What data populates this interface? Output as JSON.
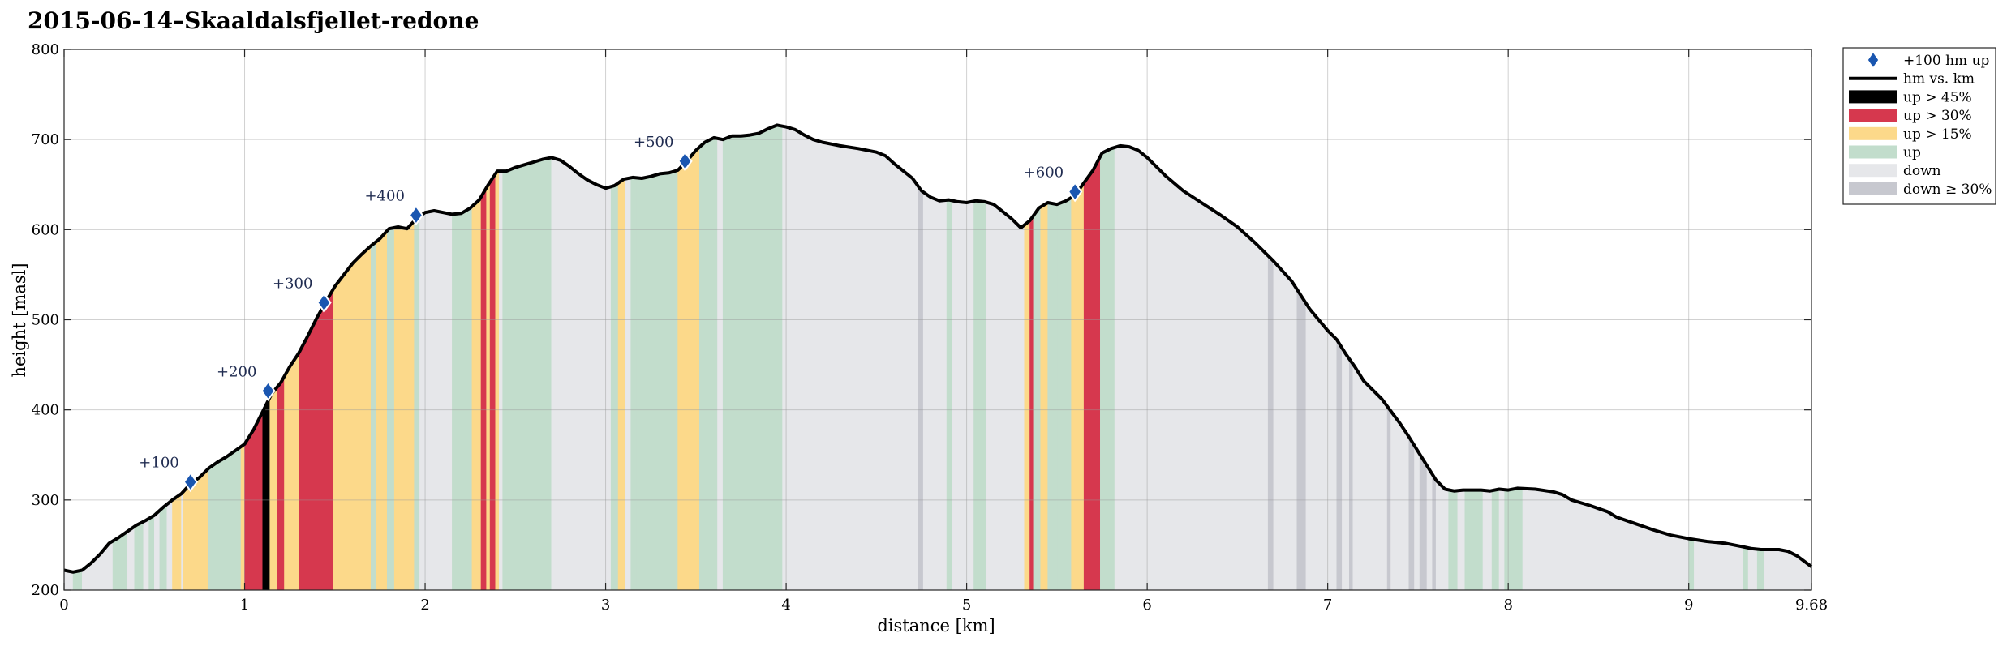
{
  "chart_data": {
    "type": "area",
    "title": "2015-06-14–Skaaldalsfjellet-redone",
    "xlabel": "distance [km]",
    "ylabel": "height [masl]",
    "xlim": [
      0,
      9.68
    ],
    "ylim": [
      200,
      800
    ],
    "xticks": [
      "0",
      "1",
      "2",
      "3",
      "4",
      "5",
      "6",
      "7",
      "8",
      "9",
      "9.68"
    ],
    "yticks": [
      "200",
      "300",
      "400",
      "500",
      "600",
      "700",
      "800"
    ],
    "grid": true,
    "legend_position": "outside-right",
    "legend": [
      {
        "key": "marker",
        "label": "+100 hm up",
        "color": "#1a56b0"
      },
      {
        "key": "line",
        "label": "hm vs. km",
        "color": "#000000"
      },
      {
        "key": "up45",
        "label": "up > 45%",
        "color": "#000000"
      },
      {
        "key": "up30",
        "label": "up > 30%",
        "color": "#d6384e"
      },
      {
        "key": "up15",
        "label": "up > 15%",
        "color": "#fcd98a"
      },
      {
        "key": "up",
        "label": "up",
        "color": "#c2ddcc"
      },
      {
        "key": "down",
        "label": "down",
        "color": "#e6e7ea"
      },
      {
        "key": "down30",
        "label": "down ≥ 30%",
        "color": "#c7c8cf"
      }
    ],
    "profile": [
      [
        0,
        222
      ],
      [
        0.05,
        220
      ],
      [
        0.1,
        222
      ],
      [
        0.15,
        230
      ],
      [
        0.2,
        240
      ],
      [
        0.25,
        252
      ],
      [
        0.3,
        258
      ],
      [
        0.35,
        265
      ],
      [
        0.4,
        272
      ],
      [
        0.45,
        277
      ],
      [
        0.5,
        283
      ],
      [
        0.55,
        292
      ],
      [
        0.6,
        300
      ],
      [
        0.65,
        307
      ],
      [
        0.7,
        318
      ],
      [
        0.75,
        325
      ],
      [
        0.8,
        335
      ],
      [
        0.85,
        342
      ],
      [
        0.9,
        348
      ],
      [
        0.95,
        355
      ],
      [
        1.0,
        362
      ],
      [
        1.05,
        378
      ],
      [
        1.1,
        398
      ],
      [
        1.15,
        418
      ],
      [
        1.2,
        430
      ],
      [
        1.25,
        448
      ],
      [
        1.3,
        463
      ],
      [
        1.35,
        482
      ],
      [
        1.4,
        502
      ],
      [
        1.45,
        520
      ],
      [
        1.5,
        537
      ],
      [
        1.55,
        550
      ],
      [
        1.6,
        563
      ],
      [
        1.65,
        573
      ],
      [
        1.7,
        582
      ],
      [
        1.75,
        590
      ],
      [
        1.8,
        601
      ],
      [
        1.85,
        603
      ],
      [
        1.9,
        601
      ],
      [
        1.95,
        612
      ],
      [
        2.0,
        619
      ],
      [
        2.05,
        621
      ],
      [
        2.1,
        619
      ],
      [
        2.15,
        617
      ],
      [
        2.2,
        618
      ],
      [
        2.25,
        624
      ],
      [
        2.3,
        633
      ],
      [
        2.35,
        650
      ],
      [
        2.4,
        665
      ],
      [
        2.45,
        665
      ],
      [
        2.5,
        669
      ],
      [
        2.55,
        672
      ],
      [
        2.6,
        675
      ],
      [
        2.65,
        678
      ],
      [
        2.7,
        680
      ],
      [
        2.75,
        677
      ],
      [
        2.8,
        670
      ],
      [
        2.85,
        662
      ],
      [
        2.9,
        655
      ],
      [
        2.95,
        650
      ],
      [
        3.0,
        646
      ],
      [
        3.05,
        649
      ],
      [
        3.1,
        656
      ],
      [
        3.15,
        658
      ],
      [
        3.2,
        657
      ],
      [
        3.25,
        659
      ],
      [
        3.3,
        662
      ],
      [
        3.35,
        663
      ],
      [
        3.4,
        666
      ],
      [
        3.45,
        676
      ],
      [
        3.5,
        688
      ],
      [
        3.55,
        697
      ],
      [
        3.6,
        702
      ],
      [
        3.65,
        700
      ],
      [
        3.7,
        704
      ],
      [
        3.75,
        704
      ],
      [
        3.8,
        705
      ],
      [
        3.85,
        707
      ],
      [
        3.9,
        712
      ],
      [
        3.95,
        716
      ],
      [
        4.0,
        714
      ],
      [
        4.05,
        711
      ],
      [
        4.1,
        705
      ],
      [
        4.15,
        700
      ],
      [
        4.2,
        697
      ],
      [
        4.3,
        693
      ],
      [
        4.4,
        690
      ],
      [
        4.5,
        686
      ],
      [
        4.55,
        682
      ],
      [
        4.6,
        673
      ],
      [
        4.65,
        665
      ],
      [
        4.7,
        657
      ],
      [
        4.75,
        643
      ],
      [
        4.8,
        636
      ],
      [
        4.85,
        632
      ],
      [
        4.9,
        633
      ],
      [
        4.95,
        631
      ],
      [
        5.0,
        630
      ],
      [
        5.05,
        632
      ],
      [
        5.1,
        631
      ],
      [
        5.15,
        628
      ],
      [
        5.2,
        620
      ],
      [
        5.25,
        612
      ],
      [
        5.3,
        602
      ],
      [
        5.35,
        610
      ],
      [
        5.4,
        624
      ],
      [
        5.45,
        630
      ],
      [
        5.5,
        628
      ],
      [
        5.55,
        632
      ],
      [
        5.6,
        638
      ],
      [
        5.65,
        652
      ],
      [
        5.7,
        666
      ],
      [
        5.75,
        685
      ],
      [
        5.8,
        690
      ],
      [
        5.85,
        693
      ],
      [
        5.9,
        692
      ],
      [
        5.95,
        688
      ],
      [
        6.0,
        680
      ],
      [
        6.05,
        670
      ],
      [
        6.1,
        660
      ],
      [
        6.2,
        643
      ],
      [
        6.3,
        630
      ],
      [
        6.4,
        617
      ],
      [
        6.5,
        603
      ],
      [
        6.6,
        585
      ],
      [
        6.7,
        565
      ],
      [
        6.8,
        543
      ],
      [
        6.9,
        512
      ],
      [
        7.0,
        488
      ],
      [
        7.05,
        478
      ],
      [
        7.1,
        462
      ],
      [
        7.15,
        448
      ],
      [
        7.2,
        432
      ],
      [
        7.3,
        412
      ],
      [
        7.4,
        385
      ],
      [
        7.45,
        370
      ],
      [
        7.5,
        354
      ],
      [
        7.55,
        338
      ],
      [
        7.6,
        322
      ],
      [
        7.65,
        312
      ],
      [
        7.7,
        310
      ],
      [
        7.75,
        311
      ],
      [
        7.8,
        311
      ],
      [
        7.85,
        311
      ],
      [
        7.9,
        310
      ],
      [
        7.95,
        312
      ],
      [
        8.0,
        311
      ],
      [
        8.05,
        313
      ],
      [
        8.15,
        312
      ],
      [
        8.25,
        309
      ],
      [
        8.3,
        306
      ],
      [
        8.35,
        300
      ],
      [
        8.45,
        294
      ],
      [
        8.55,
        287
      ],
      [
        8.6,
        281
      ],
      [
        8.7,
        274
      ],
      [
        8.8,
        267
      ],
      [
        8.9,
        261
      ],
      [
        9.0,
        257
      ],
      [
        9.1,
        254
      ],
      [
        9.2,
        252
      ],
      [
        9.3,
        248
      ],
      [
        9.35,
        246
      ],
      [
        9.4,
        245
      ],
      [
        9.5,
        245
      ],
      [
        9.55,
        243
      ],
      [
        9.6,
        238
      ],
      [
        9.68,
        226
      ]
    ],
    "band_categories": [
      "up45",
      "up30",
      "up15",
      "up",
      "down",
      "down30"
    ],
    "bands": [
      [
        0,
        0.05,
        "down"
      ],
      [
        0.05,
        0.1,
        "up"
      ],
      [
        0.1,
        0.27,
        "down"
      ],
      [
        0.27,
        0.35,
        "up"
      ],
      [
        0.35,
        0.39,
        "down"
      ],
      [
        0.39,
        0.44,
        "up"
      ],
      [
        0.44,
        0.47,
        "down"
      ],
      [
        0.47,
        0.5,
        "up"
      ],
      [
        0.5,
        0.53,
        "down"
      ],
      [
        0.53,
        0.57,
        "up"
      ],
      [
        0.57,
        0.6,
        "down"
      ],
      [
        0.6,
        0.65,
        "up15"
      ],
      [
        0.65,
        0.66,
        "down"
      ],
      [
        0.66,
        0.8,
        "up15"
      ],
      [
        0.8,
        0.98,
        "up"
      ],
      [
        0.98,
        1.0,
        "up15"
      ],
      [
        1.0,
        1.1,
        "up30"
      ],
      [
        1.1,
        1.14,
        "up45"
      ],
      [
        1.14,
        1.18,
        "up15"
      ],
      [
        1.18,
        1.22,
        "up30"
      ],
      [
        1.22,
        1.26,
        "up15"
      ],
      [
        1.26,
        1.3,
        "up15"
      ],
      [
        1.3,
        1.49,
        "up30"
      ],
      [
        1.49,
        1.7,
        "up15"
      ],
      [
        1.7,
        1.73,
        "up"
      ],
      [
        1.73,
        1.79,
        "up15"
      ],
      [
        1.79,
        1.83,
        "up"
      ],
      [
        1.83,
        1.87,
        "up15"
      ],
      [
        1.87,
        1.94,
        "up15"
      ],
      [
        1.94,
        1.97,
        "up"
      ],
      [
        1.97,
        2.01,
        "down"
      ],
      [
        2.01,
        2.15,
        "down"
      ],
      [
        2.15,
        2.26,
        "up"
      ],
      [
        2.26,
        2.31,
        "up15"
      ],
      [
        2.31,
        2.34,
        "up30"
      ],
      [
        2.34,
        2.36,
        "up15"
      ],
      [
        2.36,
        2.39,
        "up30"
      ],
      [
        2.39,
        2.41,
        "up15"
      ],
      [
        2.41,
        2.43,
        "down"
      ],
      [
        2.43,
        2.7,
        "up"
      ],
      [
        2.7,
        3.03,
        "down"
      ],
      [
        3.03,
        3.07,
        "up"
      ],
      [
        3.07,
        3.11,
        "up15"
      ],
      [
        3.11,
        3.14,
        "down"
      ],
      [
        3.14,
        3.17,
        "up"
      ],
      [
        3.17,
        3.4,
        "up"
      ],
      [
        3.4,
        3.52,
        "up15"
      ],
      [
        3.52,
        3.62,
        "up"
      ],
      [
        3.62,
        3.65,
        "down"
      ],
      [
        3.65,
        3.98,
        "up"
      ],
      [
        3.98,
        4.73,
        "down"
      ],
      [
        4.73,
        4.76,
        "down30"
      ],
      [
        4.76,
        4.89,
        "down"
      ],
      [
        4.89,
        4.92,
        "up"
      ],
      [
        4.92,
        5.04,
        "down"
      ],
      [
        5.04,
        5.11,
        "up"
      ],
      [
        5.11,
        5.32,
        "down"
      ],
      [
        5.32,
        5.35,
        "up15"
      ],
      [
        5.35,
        5.37,
        "up30"
      ],
      [
        5.37,
        5.41,
        "up"
      ],
      [
        5.41,
        5.45,
        "up15"
      ],
      [
        5.45,
        5.5,
        "up"
      ],
      [
        5.5,
        5.58,
        "up"
      ],
      [
        5.58,
        5.65,
        "up15"
      ],
      [
        5.65,
        5.74,
        "up30"
      ],
      [
        5.74,
        5.82,
        "up"
      ],
      [
        5.82,
        6.67,
        "down"
      ],
      [
        6.67,
        6.7,
        "down30"
      ],
      [
        6.7,
        6.83,
        "down"
      ],
      [
        6.83,
        6.88,
        "down30"
      ],
      [
        6.88,
        7.05,
        "down"
      ],
      [
        7.05,
        7.08,
        "down30"
      ],
      [
        7.08,
        7.12,
        "down"
      ],
      [
        7.12,
        7.14,
        "down30"
      ],
      [
        7.14,
        7.33,
        "down"
      ],
      [
        7.33,
        7.35,
        "down30"
      ],
      [
        7.35,
        7.45,
        "down"
      ],
      [
        7.45,
        7.48,
        "down30"
      ],
      [
        7.48,
        7.51,
        "down"
      ],
      [
        7.51,
        7.55,
        "down30"
      ],
      [
        7.55,
        7.58,
        "down"
      ],
      [
        7.58,
        7.6,
        "down30"
      ],
      [
        7.6,
        7.67,
        "down"
      ],
      [
        7.67,
        7.72,
        "up"
      ],
      [
        7.72,
        7.76,
        "down"
      ],
      [
        7.76,
        7.86,
        "up"
      ],
      [
        7.86,
        7.91,
        "down"
      ],
      [
        7.91,
        7.95,
        "up"
      ],
      [
        7.95,
        7.98,
        "down"
      ],
      [
        7.98,
        8.08,
        "up"
      ],
      [
        8.08,
        9.0,
        "down"
      ],
      [
        9.0,
        9.03,
        "up"
      ],
      [
        9.03,
        9.3,
        "down"
      ],
      [
        9.3,
        9.33,
        "up"
      ],
      [
        9.33,
        9.38,
        "down"
      ],
      [
        9.38,
        9.42,
        "up"
      ],
      [
        9.42,
        9.68,
        "down"
      ]
    ],
    "markers": [
      {
        "x": 0.7,
        "y": 320,
        "label": "+100"
      },
      {
        "x": 1.13,
        "y": 421,
        "label": "+200"
      },
      {
        "x": 1.44,
        "y": 519,
        "label": "+300"
      },
      {
        "x": 1.95,
        "y": 616,
        "label": "+400"
      },
      {
        "x": 3.44,
        "y": 676,
        "label": "+500"
      },
      {
        "x": 5.6,
        "y": 642,
        "label": "+600"
      }
    ]
  }
}
